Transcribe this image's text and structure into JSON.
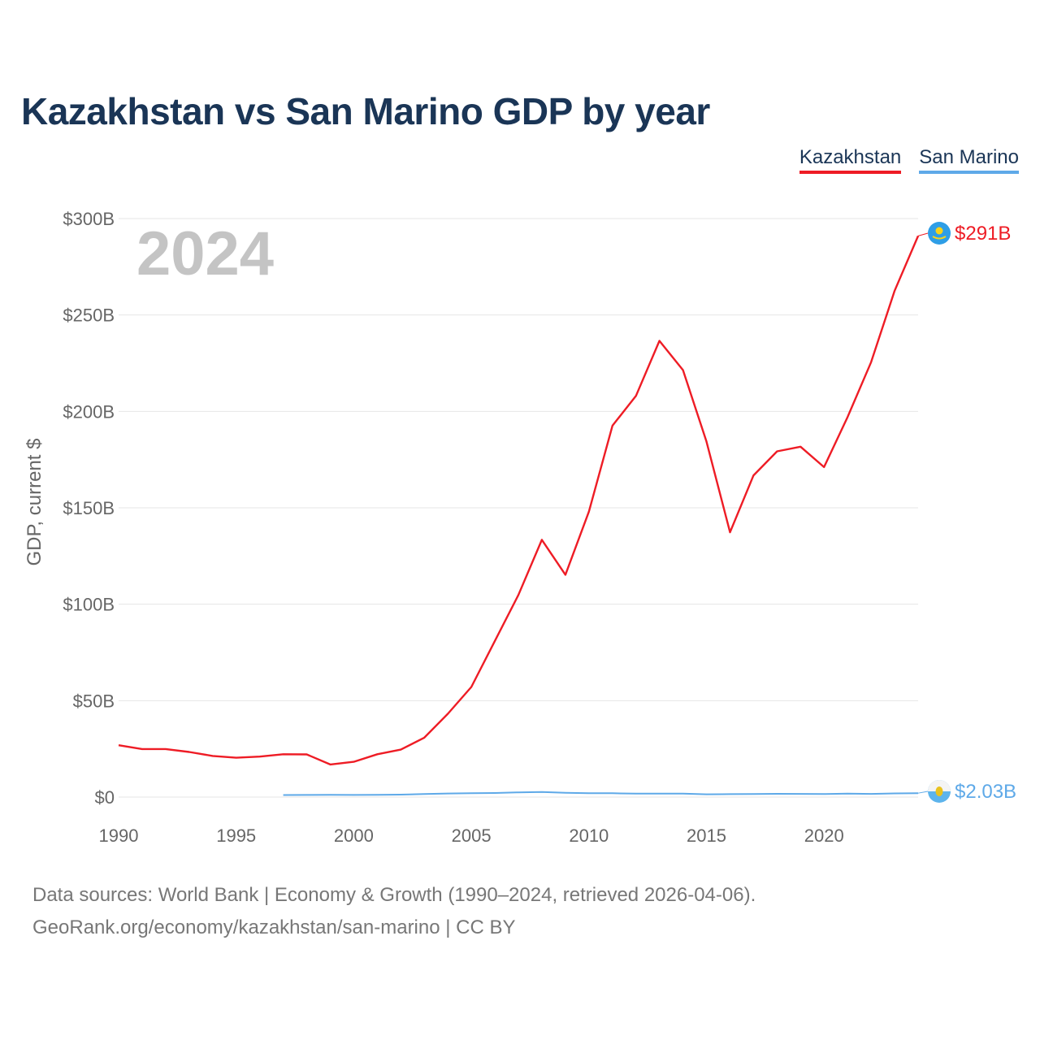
{
  "title": "Kazakhstan vs San Marino GDP by year",
  "legend": [
    {
      "label": "Kazakhstan",
      "color": "#ee1c25"
    },
    {
      "label": "San Marino",
      "color": "#5ea9e8"
    }
  ],
  "colors": {
    "kazakhstan": "#ee1c25",
    "san_marino": "#5ea9e8",
    "grid": "#e6e6e6",
    "axis_text": "#666666",
    "year_watermark": "#c4c4c4"
  },
  "source": {
    "line1": "Data sources: World Bank | Economy & Growth (1990–2024, retrieved 2026-04-06).",
    "line2": "GeoRank.org/economy/kazakhstan/san-marino | CC BY"
  },
  "chart_data": {
    "type": "line",
    "title": "Kazakhstan vs San Marino GDP by year",
    "watermark_year": "2024",
    "xlabel": "",
    "ylabel": "GDP, current $",
    "xlim": [
      1990,
      2024
    ],
    "ylim": [
      0,
      300
    ],
    "x_ticks": [
      1990,
      1995,
      2000,
      2005,
      2010,
      2015,
      2020
    ],
    "x_tick_labels": [
      "1990",
      "1995",
      "2000",
      "2005",
      "2010",
      "2015",
      "2020"
    ],
    "y_ticks": [
      0,
      50,
      100,
      150,
      200,
      250,
      300
    ],
    "y_tick_labels": [
      "$0",
      "$50B",
      "$100B",
      "$150B",
      "$200B",
      "$250B",
      "$300B"
    ],
    "grid": true,
    "legend_position": "top-right",
    "series": [
      {
        "name": "Kazakhstan",
        "unit": "billion USD",
        "end_label": "$291B",
        "flag_icon": "kazakhstan-flag-icon",
        "x": [
          1990,
          1991,
          1992,
          1993,
          1994,
          1995,
          1996,
          1997,
          1998,
          1999,
          2000,
          2001,
          2002,
          2003,
          2004,
          2005,
          2006,
          2007,
          2008,
          2009,
          2010,
          2011,
          2012,
          2013,
          2014,
          2015,
          2016,
          2017,
          2018,
          2019,
          2020,
          2021,
          2022,
          2023,
          2024
        ],
        "values": [
          26.9,
          24.9,
          24.9,
          23.4,
          21.3,
          20.4,
          21.0,
          22.2,
          22.1,
          16.9,
          18.3,
          22.2,
          24.6,
          30.8,
          43.2,
          57.1,
          81.0,
          104.8,
          133.4,
          115.3,
          148.0,
          192.6,
          208.0,
          236.6,
          221.4,
          184.4,
          137.3,
          166.8,
          179.3,
          181.7,
          171.1,
          197.1,
          225.5,
          262.6,
          291.0
        ]
      },
      {
        "name": "San Marino",
        "unit": "billion USD",
        "end_label": "$2.03B",
        "flag_icon": "san-marino-flag-icon",
        "x": [
          1997,
          1998,
          1999,
          2000,
          2001,
          2002,
          2003,
          2004,
          2005,
          2006,
          2007,
          2008,
          2009,
          2010,
          2011,
          2012,
          2013,
          2014,
          2015,
          2016,
          2017,
          2018,
          2019,
          2020,
          2021,
          2022,
          2023,
          2024
        ],
        "values": [
          1.06,
          1.1,
          1.2,
          1.1,
          1.12,
          1.26,
          1.57,
          1.84,
          1.96,
          2.09,
          2.43,
          2.63,
          2.23,
          2.0,
          1.97,
          1.77,
          1.8,
          1.77,
          1.45,
          1.51,
          1.58,
          1.67,
          1.64,
          1.54,
          1.83,
          1.64,
          1.89,
          2.03
        ]
      }
    ]
  }
}
